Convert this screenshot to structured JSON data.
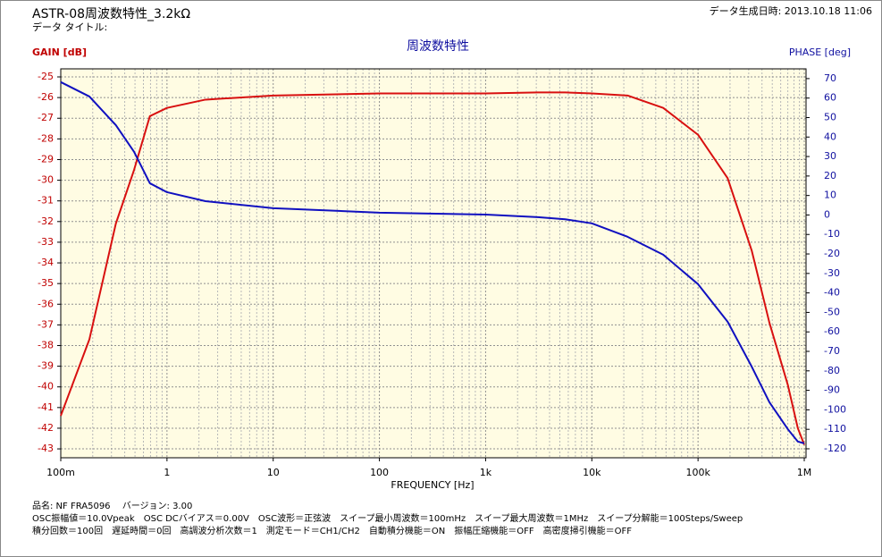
{
  "header": {
    "title": "ASTR-08周波数特性_3.2kΩ",
    "subtitle": "データ タイトル:",
    "timestamp": "データ生成日時: 2013.10.18 11:06"
  },
  "footer": [
    "品名: NF FRA5096　 バージョン: 3.00",
    "OSC振幅値＝10.0Vpeak　OSC DCバイアス＝0.00V　OSC波形＝正弦波　スイープ最小周波数＝100mHz　スイープ最大周波数＝1MHz　スイープ分解能＝100Steps/Sweep",
    "積分回数＝100回　遅延時間＝0回　高調波分析次数＝1　測定モード＝CH1/CH2　自動積分機能＝ON　振幅圧縮機能＝OFF　高密度掃引機能＝OFF"
  ],
  "chart_data": {
    "type": "line",
    "title": "周波数特性",
    "xlabel": "FREQUENCY [Hz]",
    "ylabel": "GAIN [dB]",
    "y2label": "PHASE [deg]",
    "xscale": "log",
    "grid": true,
    "minor_grid": true,
    "background": "#fffce3",
    "x": [
      0.1,
      0.186,
      0.33,
      0.49,
      0.69,
      1,
      2.3,
      10,
      100,
      1000,
      3100,
      5600,
      10000,
      21700,
      47000,
      100000,
      190000,
      320000,
      470000,
      700000,
      870000,
      1000000
    ],
    "series": [
      {
        "name": "GAIN",
        "color": "#d81010",
        "values": [
          -41.4,
          -37.7,
          -32.1,
          -29.5,
          -26.9,
          -26.5,
          -26.1,
          -25.9,
          -25.8,
          -25.8,
          -25.75,
          -25.75,
          -25.8,
          -25.9,
          -26.5,
          -27.8,
          -29.9,
          -33.4,
          -36.9,
          -39.9,
          -42.0,
          -42.8
        ]
      },
      {
        "name": "PHASE",
        "color": "#1010c0",
        "axis": "y2",
        "values": [
          68.2,
          60.8,
          46.1,
          32.4,
          16.3,
          11.7,
          7.1,
          3.5,
          1.2,
          0.2,
          -1.1,
          -2.2,
          -4.3,
          -11.2,
          -20.4,
          -35.5,
          -54.8,
          -77.8,
          -96.1,
          -109.9,
          -116.3,
          -117.2
        ]
      }
    ],
    "xlim": [
      0.1,
      1000000
    ],
    "xticks": [
      {
        "value": 0.1,
        "label": "100m"
      },
      1,
      10,
      100,
      {
        "value": 1000,
        "label": "1k"
      },
      {
        "value": 10000,
        "label": "10k"
      },
      {
        "value": 100000,
        "label": "100k"
      },
      {
        "value": 1000000,
        "label": "1M"
      }
    ],
    "ylim": [
      -43.43,
      -24.61
    ],
    "yticks": [
      -25,
      -26,
      -27,
      -28,
      -29,
      -30,
      -31,
      -32,
      -33,
      -34,
      -35,
      -36,
      -37,
      -38,
      -39,
      -40,
      -41,
      -42,
      -43
    ],
    "y2lim": [
      -124.6,
      75
    ],
    "y2ticks": [
      70,
      60,
      50,
      40,
      30,
      20,
      10,
      0,
      -10,
      -20,
      -30,
      -40,
      -50,
      -60,
      -70,
      -80,
      -90,
      -100,
      -110,
      -120
    ]
  }
}
